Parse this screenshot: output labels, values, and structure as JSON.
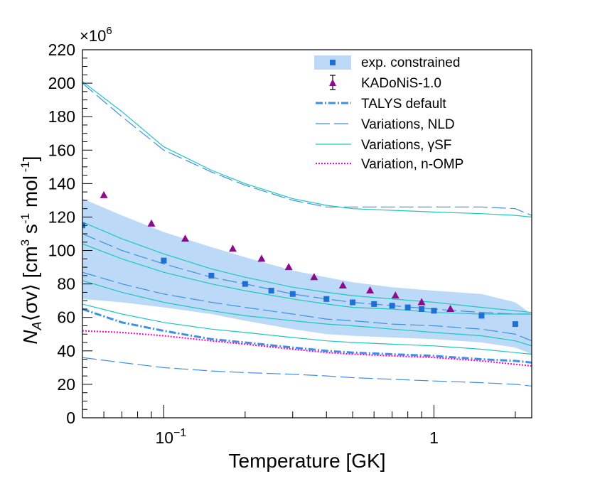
{
  "chart_data": {
    "type": "line",
    "xlabel": "Temperature [GK]",
    "ylabel": {
      "pre": "N",
      "sub": "A",
      "mid": "⟨σv⟩ [cm",
      "sup1": "3",
      "mid2": " s",
      "sup2": "-1",
      "mid3": " mol",
      "sup3": " -1",
      "post": "]"
    },
    "y_multiplier": {
      "base": "×10",
      "exp": "6"
    },
    "x_scale": "log",
    "xlim": [
      0.05,
      2.3
    ],
    "ylim": [
      0,
      220
    ],
    "y_ticks": [
      0,
      20,
      40,
      60,
      80,
      100,
      120,
      140,
      160,
      180,
      200,
      220
    ],
    "y_tick_labels": [
      "0",
      "20",
      "40",
      "60",
      "80",
      "100",
      "120",
      "140",
      "160",
      "180",
      "200",
      "220"
    ],
    "x_tick_labels": [
      {
        "value": 0.1,
        "base": "10",
        "exp": "−1"
      },
      {
        "value": 1,
        "base": "1",
        "exp": ""
      }
    ],
    "legend_position": "top-right",
    "legend": [
      {
        "key": "band",
        "label": "exp. constrained"
      },
      {
        "key": "kadonis",
        "label": "KADoNiS-1.0"
      },
      {
        "key": "talys",
        "label": "TALYS default"
      },
      {
        "key": "nld",
        "label": "Variations, NLD"
      },
      {
        "key": "gsf",
        "label": "Variations, γSF"
      },
      {
        "key": "omp",
        "label": "Variation, n-OMP"
      }
    ],
    "colors": {
      "band": "#bcd9f7",
      "exp_marker": "#1e6fd6",
      "kadonis": "#8e0b8e",
      "talys": "#3e8fe6",
      "nld": "#3e8fe6",
      "gsf": "#1cc7c0",
      "omp": "#ff00cc"
    },
    "band": {
      "x": [
        0.05,
        0.07,
        0.1,
        0.15,
        0.2,
        0.3,
        0.4,
        0.5,
        0.7,
        1.0,
        1.5,
        2.0,
        2.3
      ],
      "upper": [
        131,
        121,
        111,
        102,
        96,
        88,
        84,
        81,
        78,
        76,
        74,
        69,
        62
      ],
      "lower": [
        71,
        69,
        66,
        62,
        58,
        53,
        50,
        49,
        48,
        47,
        45,
        42,
        38
      ]
    },
    "exp_points": {
      "x": [
        0.05,
        0.1,
        0.15,
        0.2,
        0.25,
        0.3,
        0.4,
        0.5,
        0.6,
        0.7,
        0.8,
        0.9,
        1.0,
        1.5,
        2.0
      ],
      "y": [
        115,
        94,
        85,
        80,
        76,
        74,
        71,
        69,
        68,
        67,
        66,
        65,
        64,
        61,
        56
      ]
    },
    "kadonis": {
      "x": [
        0.06,
        0.09,
        0.12,
        0.18,
        0.23,
        0.29,
        0.36,
        0.46,
        0.58,
        0.72,
        0.9,
        1.15
      ],
      "y": [
        133,
        116,
        107,
        101,
        95,
        90,
        84,
        79,
        76,
        73,
        69,
        65
      ]
    },
    "talys": {
      "x": [
        0.05,
        0.07,
        0.1,
        0.15,
        0.2,
        0.3,
        0.4,
        0.5,
        0.7,
        1.0,
        1.5,
        2.0,
        2.3
      ],
      "y": [
        65,
        57,
        52,
        47,
        45,
        42,
        40,
        39,
        38,
        37,
        35,
        34,
        33
      ]
    },
    "omp": {
      "x": [
        0.05,
        0.07,
        0.1,
        0.15,
        0.2,
        0.3,
        0.4,
        0.5,
        0.7,
        1.0,
        1.5,
        2.0,
        2.3
      ],
      "y": [
        52,
        51,
        49,
        46,
        44,
        41,
        39,
        38,
        37,
        36,
        34,
        32,
        31
      ]
    },
    "nld": [
      {
        "x": [
          0.05,
          0.07,
          0.1,
          0.15,
          0.2,
          0.3,
          0.4,
          0.5,
          0.7,
          1.0,
          1.5,
          2.0,
          2.3
        ],
        "y": [
          200,
          180,
          160,
          147,
          139,
          130,
          126,
          126,
          126,
          126,
          126,
          125,
          121
        ]
      },
      {
        "x": [
          0.05,
          0.07,
          0.1,
          0.15,
          0.2,
          0.3,
          0.4,
          0.5,
          0.7,
          1.0,
          1.5,
          2.0,
          2.3
        ],
        "y": [
          110,
          100,
          92,
          84,
          80,
          74,
          71,
          69,
          67,
          65,
          63,
          62,
          62
        ]
      },
      {
        "x": [
          0.05,
          0.07,
          0.1,
          0.15,
          0.2,
          0.3,
          0.4,
          0.5,
          0.7,
          1.0,
          1.5,
          2.0,
          2.3
        ],
        "y": [
          87,
          80,
          74,
          69,
          66,
          62,
          59,
          58,
          56,
          55,
          53,
          50,
          46
        ]
      },
      {
        "x": [
          0.05,
          0.07,
          0.1,
          0.15,
          0.2,
          0.3,
          0.4,
          0.5,
          0.7,
          1.0,
          1.5,
          2.0,
          2.3
        ],
        "y": [
          36,
          33,
          30,
          28,
          27,
          26,
          25,
          24,
          23,
          22,
          21,
          20,
          19
        ]
      }
    ],
    "gsf": [
      {
        "x": [
          0.05,
          0.07,
          0.1,
          0.15,
          0.2,
          0.3,
          0.4,
          0.5,
          0.7,
          1.0,
          1.5,
          2.0,
          2.3
        ],
        "y": [
          201,
          183,
          162,
          148,
          140,
          131,
          127,
          125,
          124,
          123,
          122,
          121,
          120
        ]
      },
      {
        "x": [
          0.05,
          0.07,
          0.1,
          0.15,
          0.2,
          0.3,
          0.4,
          0.5,
          0.7,
          1.0,
          1.5,
          2.0,
          2.3
        ],
        "y": [
          117,
          107,
          98,
          89,
          84,
          78,
          75,
          73,
          71,
          69,
          66,
          64,
          63
        ]
      },
      {
        "x": [
          0.05,
          0.07,
          0.1,
          0.15,
          0.2,
          0.3,
          0.4,
          0.5,
          0.7,
          1.0,
          1.5,
          2.0,
          2.3
        ],
        "y": [
          104,
          95,
          87,
          80,
          76,
          71,
          68,
          66,
          65,
          63,
          62,
          62,
          62
        ]
      },
      {
        "x": [
          0.05,
          0.07,
          0.1,
          0.15,
          0.2,
          0.3,
          0.4,
          0.5,
          0.7,
          1.0,
          1.5,
          2.0,
          2.3
        ],
        "y": [
          82,
          75,
          69,
          64,
          61,
          58,
          56,
          55,
          53,
          51,
          49,
          46,
          43
        ]
      },
      {
        "x": [
          0.05,
          0.07,
          0.1,
          0.15,
          0.2,
          0.3,
          0.4,
          0.5,
          0.7,
          1.0,
          1.5,
          2.0,
          2.3
        ],
        "y": [
          68,
          62,
          57,
          53,
          51,
          48,
          46,
          45,
          44,
          43,
          41,
          39,
          38
        ]
      }
    ]
  }
}
